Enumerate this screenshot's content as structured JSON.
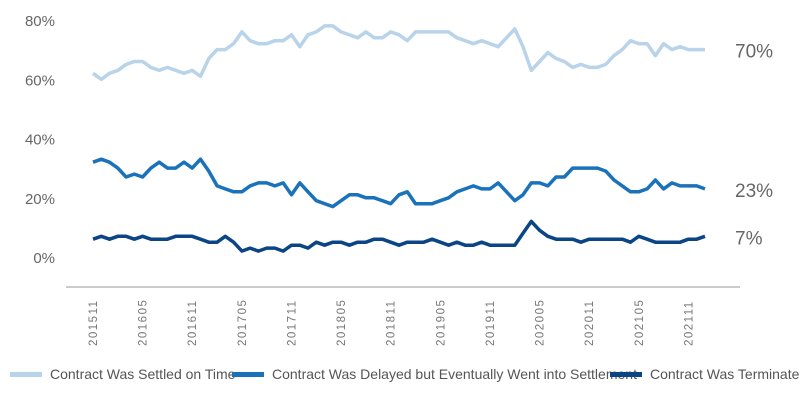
{
  "chart_data": {
    "type": "line",
    "title": "",
    "xlabel": "",
    "ylabel": "",
    "ylim": [
      0,
      80
    ],
    "y_ticks": [
      "0%",
      "20%",
      "40%",
      "60%",
      "80%"
    ],
    "x_tick_labels": [
      "201511",
      "201605",
      "201611",
      "201705",
      "201711",
      "201805",
      "201811",
      "201905",
      "201911",
      "202005",
      "202011",
      "202105",
      "202111"
    ],
    "grid": false,
    "legend_position": "bottom",
    "x": [
      "201511",
      "201512",
      "201601",
      "201602",
      "201603",
      "201604",
      "201605",
      "201606",
      "201607",
      "201608",
      "201609",
      "201610",
      "201611",
      "201612",
      "201701",
      "201702",
      "201703",
      "201704",
      "201705",
      "201706",
      "201707",
      "201708",
      "201709",
      "201710",
      "201711",
      "201712",
      "201801",
      "201802",
      "201803",
      "201804",
      "201805",
      "201806",
      "201807",
      "201808",
      "201809",
      "201810",
      "201811",
      "201812",
      "201901",
      "201902",
      "201903",
      "201904",
      "201905",
      "201906",
      "201907",
      "201908",
      "201909",
      "201910",
      "201911",
      "201912",
      "202001",
      "202002",
      "202003",
      "202004",
      "202005",
      "202006",
      "202007",
      "202008",
      "202009",
      "202010",
      "202011",
      "202012",
      "202101",
      "202102",
      "202103",
      "202104",
      "202105",
      "202106",
      "202107",
      "202108",
      "202109",
      "202110",
      "202111",
      "202112",
      "202201"
    ],
    "series": [
      {
        "name": "Contract Was Settled on Time",
        "color": "#b8d3ea",
        "end_label": "70%",
        "values": [
          62,
          60,
          62,
          63,
          65,
          66,
          66,
          64,
          63,
          64,
          63,
          62,
          63,
          61,
          67,
          70,
          70,
          72,
          76,
          73,
          72,
          72,
          73,
          73,
          75,
          71,
          75,
          76,
          78,
          78,
          76,
          75,
          74,
          76,
          74,
          74,
          76,
          75,
          73,
          76,
          76,
          76,
          76,
          76,
          74,
          73,
          72,
          73,
          72,
          71,
          74,
          77,
          71,
          63,
          66,
          69,
          67,
          66,
          64,
          65,
          64,
          64,
          65,
          68,
          70,
          73,
          72,
          72,
          68,
          72,
          70,
          71,
          70,
          70,
          70
        ]
      },
      {
        "name": "Contract Was Delayed but Eventually Went into Settlement",
        "color": "#1a73ba",
        "end_label": "23%",
        "values": [
          32,
          33,
          32,
          30,
          27,
          28,
          27,
          30,
          32,
          30,
          30,
          32,
          30,
          33,
          29,
          24,
          23,
          22,
          22,
          24,
          25,
          25,
          24,
          25,
          21,
          25,
          22,
          19,
          18,
          17,
          19,
          21,
          21,
          20,
          20,
          19,
          18,
          21,
          22,
          18,
          18,
          18,
          19,
          20,
          22,
          23,
          24,
          23,
          23,
          25,
          22,
          19,
          21,
          25,
          25,
          24,
          27,
          27,
          30,
          30,
          30,
          30,
          29,
          26,
          24,
          22,
          22,
          23,
          26,
          23,
          25,
          24,
          24,
          24,
          23
        ]
      },
      {
        "name": "Contract Was Terminated",
        "color": "#0b4585",
        "end_label": "7%",
        "values": [
          6,
          7,
          6,
          7,
          7,
          6,
          7,
          6,
          6,
          6,
          7,
          7,
          7,
          6,
          5,
          5,
          7,
          5,
          2,
          3,
          2,
          3,
          3,
          2,
          4,
          4,
          3,
          5,
          4,
          5,
          5,
          4,
          5,
          5,
          6,
          6,
          5,
          4,
          5,
          5,
          5,
          6,
          5,
          4,
          5,
          4,
          4,
          5,
          4,
          4,
          4,
          4,
          8,
          12,
          9,
          7,
          6,
          6,
          6,
          5,
          6,
          6,
          6,
          6,
          6,
          5,
          7,
          6,
          5,
          5,
          5,
          5,
          6,
          6,
          7
        ]
      }
    ]
  }
}
